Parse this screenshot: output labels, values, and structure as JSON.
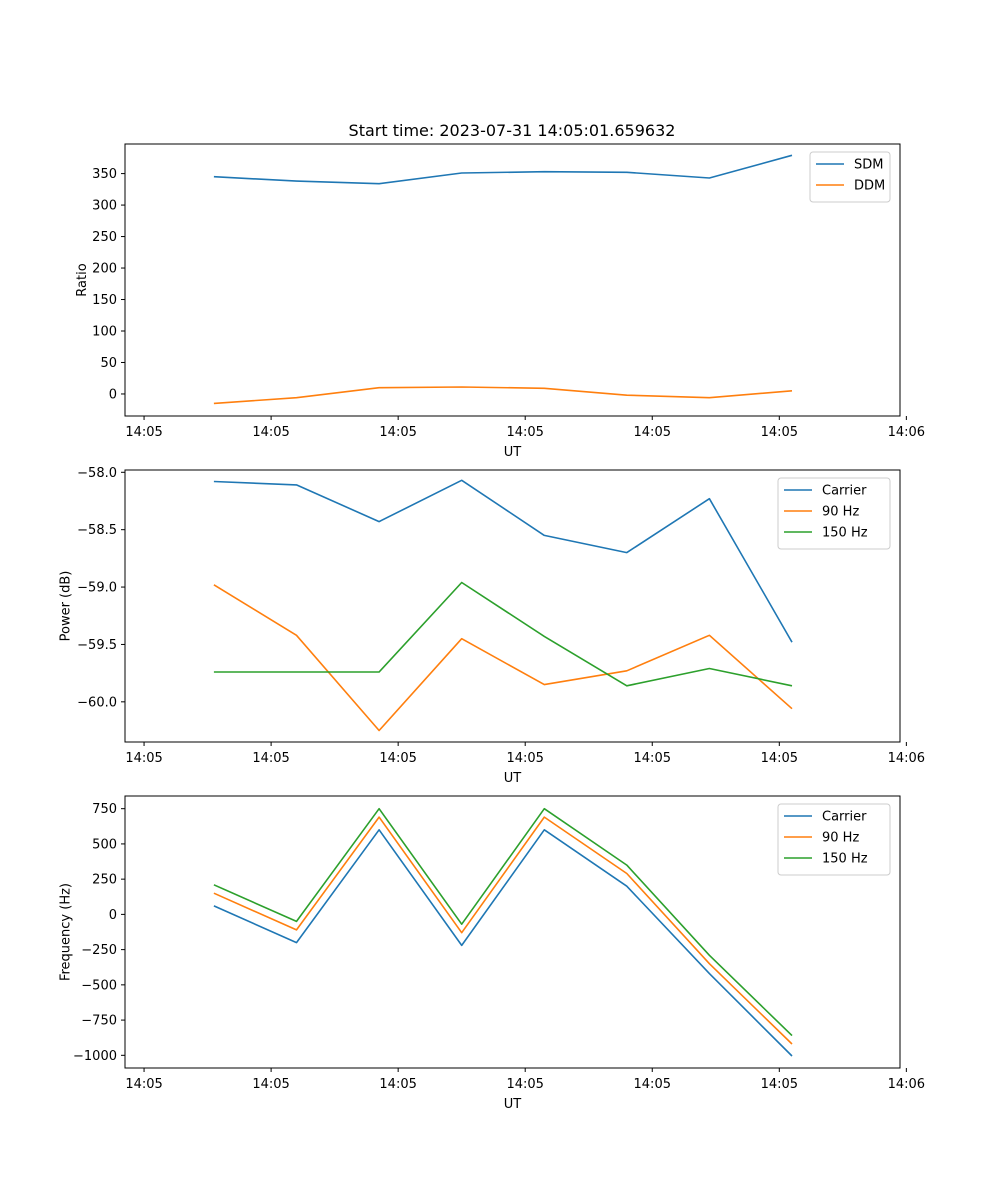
{
  "figure_title": "Start time: 2023-07-31 14:05:01.659632",
  "chart_data": [
    {
      "type": "line",
      "title": "Start time: 2023-07-31 14:05:01.659632",
      "xlabel": "UT",
      "ylabel": "Ratio",
      "x": [
        0.7,
        1.35,
        2.0,
        2.65,
        3.3,
        3.95,
        4.6,
        5.25
      ],
      "xlim": [
        0,
        6.1
      ],
      "xticks": [
        0.15,
        1.15,
        2.15,
        3.15,
        4.15,
        5.15,
        6.15
      ],
      "xtick_labels": [
        "14:05",
        "14:05",
        "14:05",
        "14:05",
        "14:05",
        "14:05",
        "14:06"
      ],
      "ylim": [
        -35,
        397
      ],
      "yticks": [
        0,
        50,
        100,
        150,
        200,
        250,
        300,
        350
      ],
      "ytick_labels": [
        "0",
        "50",
        "100",
        "150",
        "200",
        "250",
        "300",
        "350"
      ],
      "legend": "top-right",
      "grid": false,
      "series": [
        {
          "name": "SDM",
          "color": "#1f77b4",
          "values": [
            345,
            338,
            334,
            351,
            353,
            352,
            343,
            379
          ]
        },
        {
          "name": "DDM",
          "color": "#ff7f0e",
          "values": [
            -15,
            -6,
            10,
            11,
            9,
            -2,
            -6,
            5
          ]
        }
      ]
    },
    {
      "type": "line",
      "title": "",
      "xlabel": "UT",
      "ylabel": "Power (dB)",
      "x": [
        0.7,
        1.35,
        2.0,
        2.65,
        3.3,
        3.95,
        4.6,
        5.25
      ],
      "xlim": [
        0,
        6.1
      ],
      "xticks": [
        0.15,
        1.15,
        2.15,
        3.15,
        4.15,
        5.15,
        6.15
      ],
      "xtick_labels": [
        "14:05",
        "14:05",
        "14:05",
        "14:05",
        "14:05",
        "14:05",
        "14:06"
      ],
      "ylim": [
        -60.35,
        -57.98
      ],
      "yticks": [
        -60.0,
        -59.5,
        -59.0,
        -58.5,
        -58.0
      ],
      "ytick_labels": [
        "−60.0",
        "−59.5",
        "−59.0",
        "−58.5",
        "−58.0"
      ],
      "legend": "top-right",
      "grid": false,
      "series": [
        {
          "name": "Carrier",
          "color": "#1f77b4",
          "values": [
            -58.08,
            -58.11,
            -58.43,
            -58.07,
            -58.55,
            -58.7,
            -58.23,
            -59.48
          ]
        },
        {
          "name": "90 Hz",
          "color": "#ff7f0e",
          "values": [
            -58.98,
            -59.42,
            -60.25,
            -59.45,
            -59.85,
            -59.73,
            -59.42,
            -60.06
          ]
        },
        {
          "name": "150 Hz",
          "color": "#2ca02c",
          "values": [
            -59.74,
            -59.74,
            -59.74,
            -58.96,
            -59.43,
            -59.86,
            -59.71,
            -59.86
          ]
        }
      ]
    },
    {
      "type": "line",
      "title": "",
      "xlabel": "UT",
      "ylabel": "Frequency (Hz)",
      "x": [
        0.7,
        1.35,
        2.0,
        2.65,
        3.3,
        3.95,
        4.6,
        5.25
      ],
      "xlim": [
        0,
        6.1
      ],
      "xticks": [
        0.15,
        1.15,
        2.15,
        3.15,
        4.15,
        5.15,
        6.15
      ],
      "xtick_labels": [
        "14:05",
        "14:05",
        "14:05",
        "14:05",
        "14:05",
        "14:05",
        "14:06"
      ],
      "ylim": [
        -1090,
        840
      ],
      "yticks": [
        -1000,
        -750,
        -500,
        -250,
        0,
        250,
        500,
        750
      ],
      "ytick_labels": [
        "−1000",
        "−750",
        "−500",
        "−250",
        "0",
        "250",
        "500",
        "750"
      ],
      "legend": "top-right",
      "grid": false,
      "series": [
        {
          "name": "Carrier",
          "color": "#1f77b4",
          "values": [
            60,
            -200,
            600,
            -220,
            600,
            200,
            -420,
            -1005
          ]
        },
        {
          "name": "90 Hz",
          "color": "#ff7f0e",
          "values": [
            150,
            -110,
            690,
            -130,
            690,
            290,
            -350,
            -920
          ]
        },
        {
          "name": "150 Hz",
          "color": "#2ca02c",
          "values": [
            210,
            -50,
            750,
            -70,
            750,
            350,
            -290,
            -860
          ]
        }
      ]
    }
  ]
}
